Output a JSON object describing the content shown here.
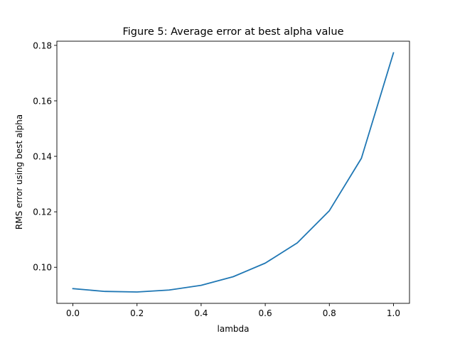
{
  "chart_data": {
    "type": "line",
    "title": "Figure 5: Average error at best alpha value",
    "xlabel": "lambda",
    "ylabel": "RMS error using best alpha",
    "xlim": [
      -0.05,
      1.05
    ],
    "ylim": [
      0.087,
      0.1815
    ],
    "x_ticks": [
      0.0,
      0.2,
      0.4,
      0.6,
      0.8,
      1.0
    ],
    "x_tick_labels": [
      "0.0",
      "0.2",
      "0.4",
      "0.6",
      "0.8",
      "1.0"
    ],
    "y_ticks": [
      0.1,
      0.12,
      0.14,
      0.16,
      0.18
    ],
    "y_tick_labels": [
      "0.10",
      "0.12",
      "0.14",
      "0.16",
      "0.18"
    ],
    "grid": false,
    "series": [
      {
        "color": "#1f77b4",
        "x": [
          0.0,
          0.1,
          0.2,
          0.3,
          0.4,
          0.5,
          0.6,
          0.7,
          0.8,
          0.9,
          1.0
        ],
        "y": [
          0.0923,
          0.0913,
          0.0911,
          0.0918,
          0.0935,
          0.0966,
          0.1015,
          0.1088,
          0.1204,
          0.1393,
          0.1773
        ]
      }
    ]
  }
}
